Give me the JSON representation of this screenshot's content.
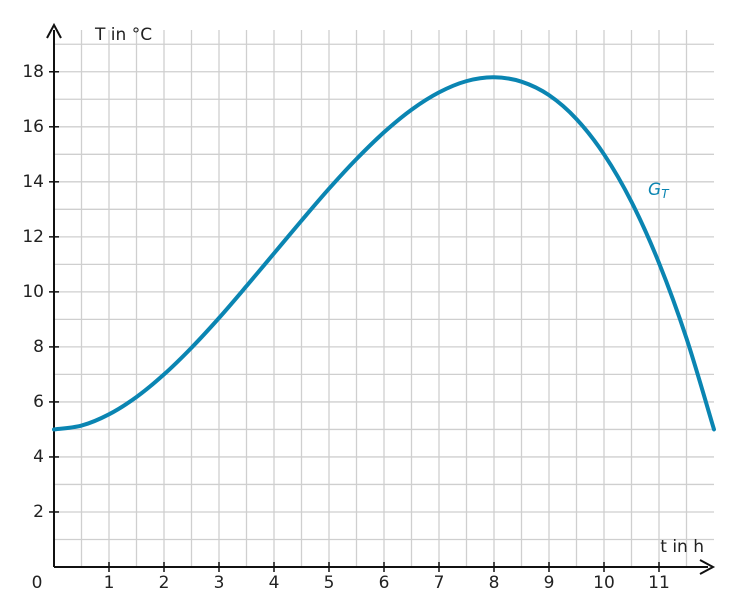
{
  "chart_data": {
    "type": "line",
    "x_label": "t in h",
    "y_label": "T in °C",
    "x": [
      0,
      0.5,
      1,
      1.5,
      2,
      2.5,
      3,
      3.5,
      4,
      4.5,
      5,
      5.5,
      6,
      6.5,
      7,
      7.5,
      8,
      8.5,
      9,
      9.5,
      10,
      10.5,
      11,
      11.5,
      12
    ],
    "series": [
      {
        "name": "G",
        "name_subscript": "T",
        "color": "#0a85b2",
        "values": [
          5,
          5.14,
          5.55,
          6.18,
          7.0,
          7.97,
          9.05,
          10.21,
          11.4,
          12.59,
          13.75,
          14.83,
          15.8,
          16.62,
          17.25,
          17.66,
          17.8,
          17.64,
          17.15,
          16.28,
          15,
          13.27,
          11.05,
          8.31,
          5
        ]
      }
    ],
    "xlim": [
      0,
      12
    ],
    "ylim": [
      0,
      19.7
    ],
    "xticks": [
      0,
      1,
      2,
      3,
      4,
      5,
      6,
      7,
      8,
      9,
      10,
      11
    ],
    "yticks": [
      2,
      4,
      6,
      8,
      10,
      12,
      14,
      16,
      18
    ],
    "grid": true
  }
}
